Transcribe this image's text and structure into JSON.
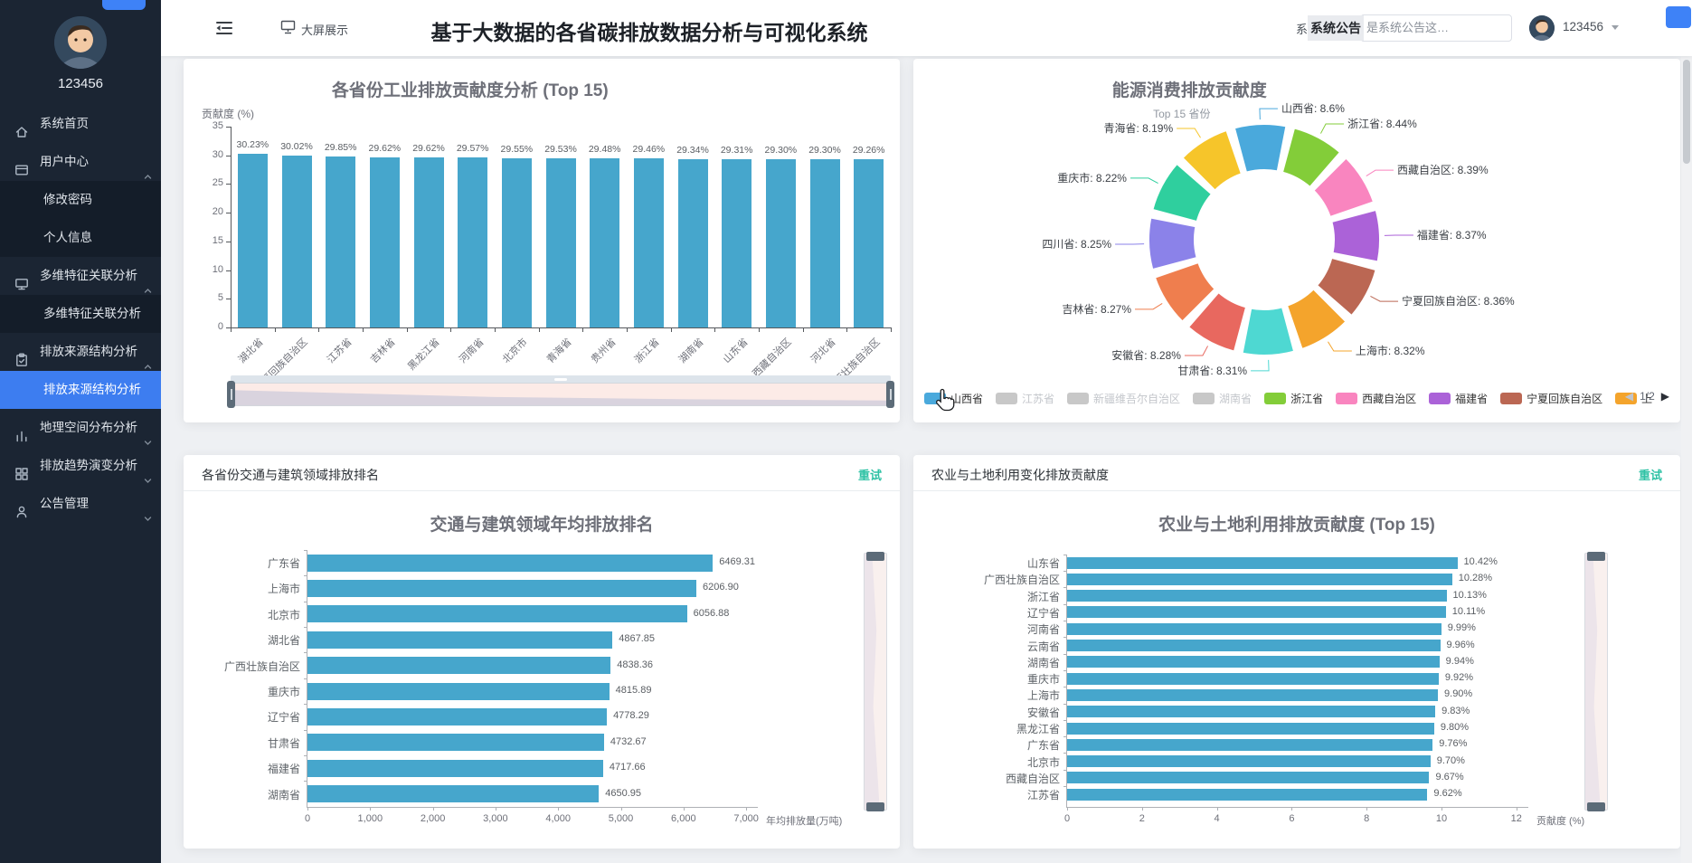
{
  "sidebar": {
    "username": "123456",
    "menu": [
      {
        "label": "系统首页",
        "icon": "home-icon",
        "children": []
      },
      {
        "label": "用户中心",
        "icon": "card-icon",
        "expanded": true,
        "children": [
          {
            "label": "修改密码"
          },
          {
            "label": "个人信息"
          }
        ]
      },
      {
        "label": "多维特征关联分析",
        "icon": "monitor-icon",
        "expanded": true,
        "children": [
          {
            "label": "多维特征关联分析"
          }
        ]
      },
      {
        "label": "排放来源结构分析",
        "icon": "clipboard-icon",
        "expanded": true,
        "children": [
          {
            "label": "排放来源结构分析",
            "active": true
          }
        ]
      },
      {
        "label": "地理空间分布分析",
        "icon": "bar-chart-icon",
        "expanded": false,
        "children": null
      },
      {
        "label": "排放趋势演变分析",
        "icon": "grid-icon",
        "expanded": false,
        "children": null
      },
      {
        "label": "公告管理",
        "icon": "user-icon",
        "expanded": false,
        "children": null
      }
    ]
  },
  "header": {
    "screen_button": "大屏展示",
    "title": "基于大数据的各省碳排放数据分析与可视化系统",
    "notice_lead": "系",
    "notice_bold": "系统公告",
    "notice_text": "是系统公告这…",
    "username": "123456"
  },
  "charts": {
    "industry": {
      "type": "bar",
      "title": "各省份工业排放贡献度分析 (Top 15)",
      "y_name": "贡献度 (%)",
      "ylim": [
        0,
        35
      ],
      "y_ticks": [
        35,
        30,
        25,
        20,
        15,
        10,
        5,
        0
      ],
      "categories": [
        "湖北省",
        "宁夏回族自治区",
        "江苏省",
        "吉林省",
        "黑龙江省",
        "河南省",
        "北京市",
        "青海省",
        "贵州省",
        "浙江省",
        "湖南省",
        "山东省",
        "西藏自治区",
        "河北省",
        "广西壮族自治区"
      ],
      "values": [
        30.23,
        30.02,
        29.85,
        29.62,
        29.62,
        29.57,
        29.55,
        29.53,
        29.48,
        29.46,
        29.34,
        29.31,
        29.3,
        29.3,
        29.26
      ],
      "labels": [
        "30.23%",
        "30.02%",
        "29.85%",
        "29.62%",
        "29.62%",
        "29.57%",
        "29.55%",
        "29.53%",
        "29.48%",
        "29.46%",
        "29.34%",
        "29.31%",
        "29.30%",
        "29.30%",
        "29.26%"
      ],
      "bar_color": "#46a6cc"
    },
    "energy": {
      "type": "pie",
      "title": "能源消费排放贡献度",
      "subtitle": "Top 15 省份",
      "segments": [
        {
          "name": "山西省",
          "label": "山西省: 8.6%",
          "value": 8.6,
          "color": "#4aa9dc"
        },
        {
          "name": "浙江省",
          "label": "浙江省: 8.44%",
          "value": 8.44,
          "color": "#83cd39"
        },
        {
          "name": "西藏自治区",
          "label": "西藏自治区: 8.39%",
          "value": 8.39,
          "color": "#f985bf"
        },
        {
          "name": "福建省",
          "label": "福建省: 8.37%",
          "value": 8.37,
          "color": "#ab62d8"
        },
        {
          "name": "宁夏回族自治区",
          "label": "宁夏回族自治区: 8.36%",
          "value": 8.36,
          "color": "#bb6753"
        },
        {
          "name": "上海市",
          "label": "上海市: 8.32%",
          "value": 8.32,
          "color": "#f4a42c"
        },
        {
          "name": "甘肃省",
          "label": "甘肃省: 8.31%",
          "value": 8.31,
          "color": "#4ed8d2"
        },
        {
          "name": "安徽省",
          "label": "安徽省: 8.28%",
          "value": 8.28,
          "color": "#e8685f"
        },
        {
          "name": "吉林省",
          "label": "吉林省: 8.27%",
          "value": 8.27,
          "color": "#ef7e4e"
        },
        {
          "name": "四川省",
          "label": "四川省: 8.25%",
          "value": 8.25,
          "color": "#8b82e9"
        },
        {
          "name": "重庆市",
          "label": "重庆市: 8.22%",
          "value": 8.22,
          "color": "#2fcf9e"
        },
        {
          "name": "青海省",
          "label": "青海省: 8.19%",
          "value": 8.19,
          "color": "#f6c52a"
        }
      ],
      "legend": {
        "items": [
          {
            "label": "山西省",
            "color": "#4aa9dc",
            "selected": true
          },
          {
            "label": "江苏省",
            "color": "#c8c8c8",
            "selected": false
          },
          {
            "label": "新疆维吾尔自治区",
            "color": "#c8c8c8",
            "selected": false
          },
          {
            "label": "湖南省",
            "color": "#c8c8c8",
            "selected": false
          },
          {
            "label": "浙江省",
            "color": "#83cd39",
            "selected": true
          },
          {
            "label": "西藏自治区",
            "color": "#f985bf",
            "selected": true
          },
          {
            "label": "福建省",
            "color": "#ab62d8",
            "selected": true
          },
          {
            "label": "宁夏回族自治区",
            "color": "#bb6753",
            "selected": true
          },
          {
            "label": "上",
            "color": "#f4a42c",
            "selected": true
          }
        ],
        "prev": "◀",
        "page": "1/2",
        "next": "▶"
      }
    },
    "transport": {
      "type": "bar",
      "panel_title": "各省份交通与建筑领域排放排名",
      "retry": "重试",
      "title": "交通与建筑领域年均排放排名",
      "categories": [
        "广东省",
        "上海市",
        "北京市",
        "湖北省",
        "广西壮族自治区",
        "重庆市",
        "辽宁省",
        "甘肃省",
        "福建省",
        "湖南省"
      ],
      "values": [
        6469.31,
        6206.9,
        6056.88,
        4867.85,
        4838.36,
        4815.89,
        4778.29,
        4732.67,
        4717.66,
        4650.95
      ],
      "labels": [
        "6469.31",
        "6206.90",
        "6056.88",
        "4867.85",
        "4838.36",
        "4815.89",
        "4778.29",
        "4732.67",
        "4717.66",
        "4650.95"
      ],
      "xlim": [
        0,
        7000
      ],
      "x_ticks": [
        "0",
        "1,000",
        "2,000",
        "3,000",
        "4,000",
        "5,000",
        "6,000",
        "7,000"
      ],
      "x_name": "年均排放量(万吨)",
      "bar_color": "#46a6cc"
    },
    "agriculture": {
      "type": "bar",
      "panel_title": "农业与土地利用变化排放贡献度",
      "retry": "重试",
      "title": "农业与土地利用排放贡献度 (Top 15)",
      "categories": [
        "山东省",
        "广西壮族自治区",
        "浙江省",
        "辽宁省",
        "河南省",
        "云南省",
        "湖南省",
        "重庆市",
        "上海市",
        "安徽省",
        "黑龙江省",
        "广东省",
        "北京市",
        "西藏自治区",
        "江苏省"
      ],
      "values": [
        10.42,
        10.28,
        10.13,
        10.11,
        9.99,
        9.96,
        9.94,
        9.92,
        9.9,
        9.83,
        9.8,
        9.76,
        9.7,
        9.67,
        9.62
      ],
      "labels": [
        "10.42%",
        "10.28%",
        "10.13%",
        "10.11%",
        "9.99%",
        "9.96%",
        "9.94%",
        "9.92%",
        "9.90%",
        "9.83%",
        "9.80%",
        "9.76%",
        "9.70%",
        "9.67%",
        "9.62%"
      ],
      "xlim": [
        0,
        12
      ],
      "x_ticks": [
        "0",
        "2",
        "4",
        "6",
        "8",
        "10",
        "12"
      ],
      "x_name": "贡献度 (%)",
      "bar_color": "#46a6cc"
    }
  }
}
